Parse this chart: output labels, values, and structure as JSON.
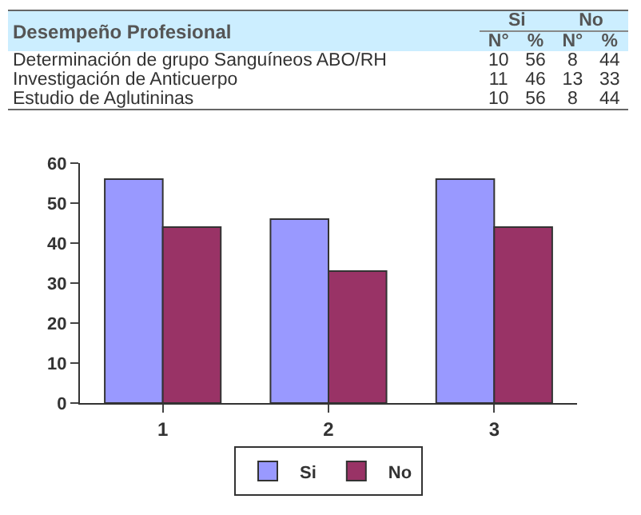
{
  "chart_data": [
    {
      "type": "other",
      "title": "Desempeño Profesional",
      "categories": [
        "Determinación de grupo Sanguíneos ABO/RH",
        "Investigación de Anticuerpo",
        "Estudio de Aglutininas"
      ],
      "series": [
        {
          "name": "Si",
          "values": [
            10,
            11,
            10
          ]
        },
        {
          "values": [
            56,
            46,
            56
          ]
        },
        {
          "name": "No",
          "values": [
            8,
            13,
            8
          ]
        },
        {
          "values": [
            44,
            33,
            44
          ]
        }
      ],
      "annotations": [
        "N°",
        "%",
        "N°",
        "%"
      ],
      "data_labels": true
    },
    {
      "type": "bar",
      "categories": [
        "1",
        "2",
        "3"
      ],
      "series": [
        {
          "name": "Si",
          "color": "#9999ff",
          "values": [
            56,
            46,
            56
          ]
        },
        {
          "name": "No",
          "color": "#993366",
          "values": [
            44,
            33,
            44
          ]
        }
      ],
      "ylim": [
        0,
        60
      ],
      "yticks": [
        0,
        10,
        20,
        30,
        40,
        50,
        60
      ],
      "grid": false,
      "legend": "bottom"
    }
  ]
}
